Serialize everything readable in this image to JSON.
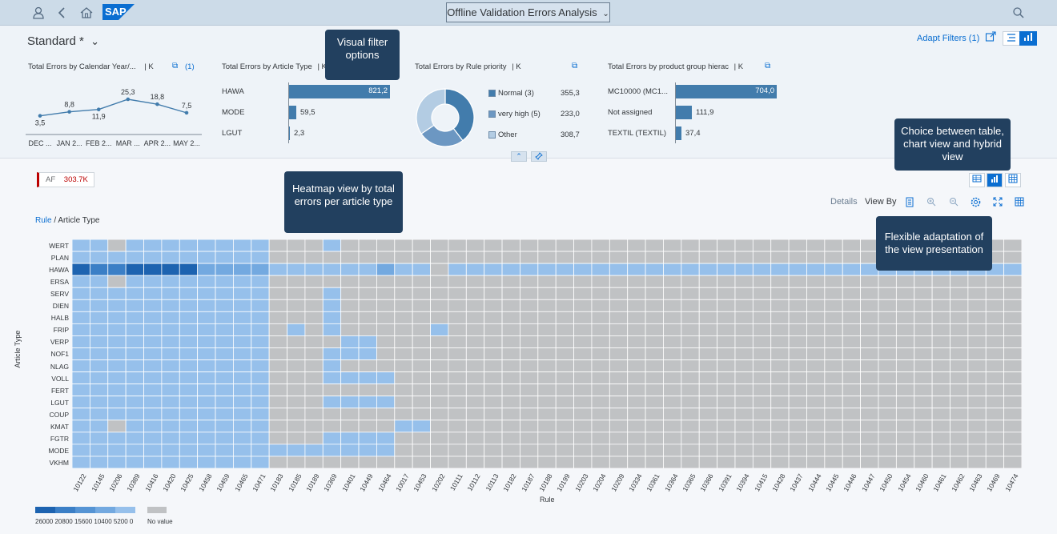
{
  "shell": {
    "app_title": "Offline Validation Errors Analysis",
    "icons": [
      "user-icon",
      "back-icon",
      "home-icon",
      "search-icon"
    ],
    "logo_text": "SAP"
  },
  "header": {
    "variant": "Standard *",
    "adapt_filters": "Adapt Filters (1)"
  },
  "cards": {
    "calendar": {
      "title": "Total Errors by Calendar Year/...",
      "unit": "| K",
      "count": "(1)",
      "points": [
        {
          "x": "DEC ...",
          "value": "3,5",
          "v": 3.5
        },
        {
          "x": "JAN 2...",
          "value": "8,8",
          "v": 8.8
        },
        {
          "x": "FEB 2...",
          "value": "11,9",
          "v": 11.9
        },
        {
          "x": "MAR ...",
          "value": "25,3",
          "v": 25.3
        },
        {
          "x": "APR 2...",
          "value": "18,8",
          "v": 18.8
        },
        {
          "x": "MAY 2...",
          "value": "7,5",
          "v": 7.5
        }
      ]
    },
    "article_type": {
      "title": "Total Errors by Article Type",
      "unit": "| K",
      "rows": [
        {
          "label": "HAWA",
          "value": "821,2",
          "v": 821.2
        },
        {
          "label": "MODE",
          "value": "59,5",
          "v": 59.5
        },
        {
          "label": "LGUT",
          "value": "2,3",
          "v": 2.3
        }
      ]
    },
    "priority": {
      "title": "Total Errors by Rule priority",
      "unit": "| K",
      "rows": [
        {
          "label": "Normal (3)",
          "value": "355,3",
          "v": 355.3,
          "color": "#427cac"
        },
        {
          "label": "very high (5)",
          "value": "233,0",
          "v": 233.0,
          "color": "#6c97c2"
        },
        {
          "label": "Other",
          "value": "308,7",
          "v": 308.7,
          "color": "#b3cce3"
        }
      ]
    },
    "product_group": {
      "title": "Total Errors by product group hierac",
      "unit": "| K",
      "rows": [
        {
          "label": "MC10000 (MC1...",
          "value": "704,0",
          "v": 704.0
        },
        {
          "label": "Not assigned",
          "value": "111,9",
          "v": 111.9
        },
        {
          "label": "TEXTIL (TEXTIL)",
          "value": "37,4",
          "v": 37.4
        }
      ]
    }
  },
  "callouts": {
    "visual_filter": "Visual filter options",
    "heatmap": "Heatmap view by total errors per article type",
    "choice": "Choice between table, chart view and hybrid view",
    "flexible": "Flexible adaptation of the view presentation"
  },
  "content": {
    "af_label": "AF",
    "af_value": "303.7K",
    "toolbar": {
      "details": "Details",
      "view_by": "View By"
    },
    "breadcrumb_link": "Rule",
    "breadcrumb_sep": " / ",
    "breadcrumb_current": "Article Type",
    "x_title": "Rule",
    "y_title": "Article Type",
    "legend_labels": [
      "26000",
      "20800",
      "15600",
      "10400",
      "5200",
      "0"
    ],
    "no_value": "No value"
  },
  "chart_data": {
    "type": "heatmap",
    "xlabel": "Rule",
    "ylabel": "Article Type",
    "rows": [
      "WERT",
      "PLAN",
      "HAWA",
      "ERSA",
      "SERV",
      "DIEN",
      "HALB",
      "FRIP",
      "VERP",
      "NOF1",
      "NLAG",
      "VOLL",
      "FERT",
      "LGUT",
      "COUP",
      "KMAT",
      "FGTR",
      "MODE",
      "VKHM"
    ],
    "columns": [
      "10122",
      "10145",
      "10206",
      "10389",
      "10416",
      "10420",
      "10425",
      "10458",
      "10459",
      "10465",
      "10471",
      "10183",
      "10185",
      "10189",
      "10369",
      "10401",
      "10449",
      "10464",
      "10017",
      "10453",
      "10202",
      "10111",
      "10112",
      "10113",
      "10182",
      "10187",
      "10188",
      "10199",
      "10203",
      "10204",
      "10209",
      "10334",
      "10361",
      "10364",
      "10365",
      "10366",
      "10391",
      "10394",
      "10415",
      "10428",
      "10437",
      "10444",
      "10445",
      "10446",
      "10447",
      "10450",
      "10454",
      "10460",
      "10461",
      "10462",
      "10463",
      "10469",
      "10474"
    ],
    "legend": {
      "scale": [
        26000,
        20800,
        15600,
        10400,
        5200,
        0
      ],
      "colors": [
        "#1d63b0",
        "#3b7fc6",
        "#5594d4",
        "#73a9e0",
        "#96c0eb"
      ],
      "no_value_color": "#c0c2c4"
    }
  }
}
